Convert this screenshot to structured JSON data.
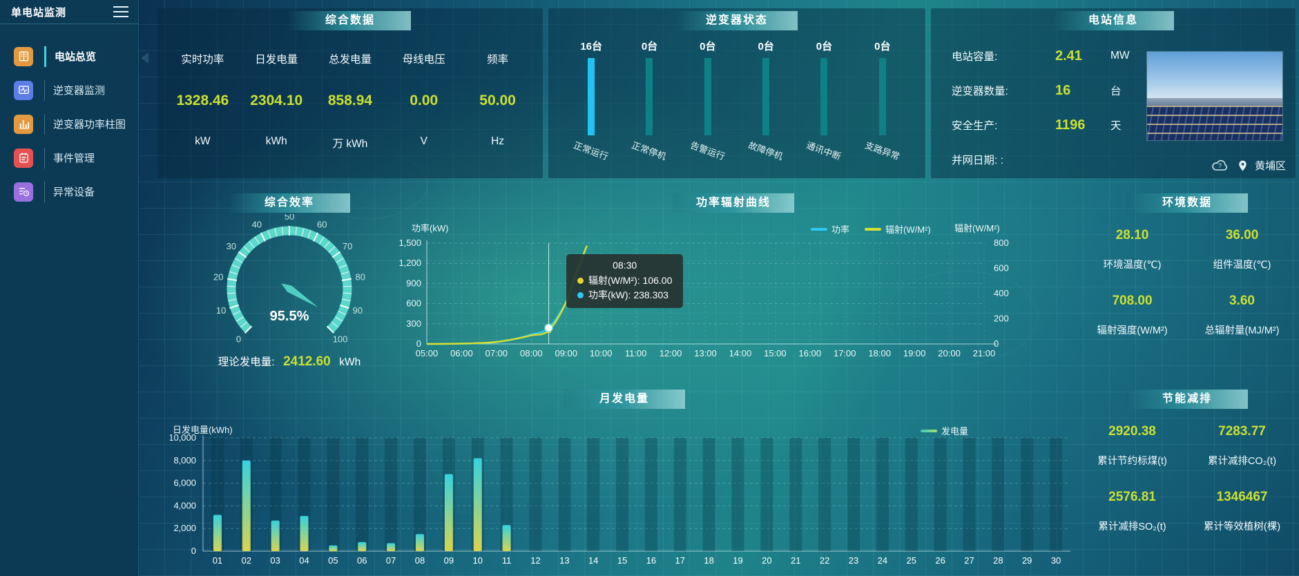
{
  "app": {
    "title": "单电站监测"
  },
  "theme": {
    "accent_value_color": "#cbe032",
    "banner_color": "#2f99a4",
    "gauge_color": "#5bd8ca"
  },
  "sidebar": {
    "items": [
      {
        "label": "电站总览",
        "icon": "station-overview-icon",
        "icon_color": "#e2993f",
        "active": true
      },
      {
        "label": "逆变器监测",
        "icon": "inverter-monitor-icon",
        "icon_color": "#5b7de4",
        "active": false
      },
      {
        "label": "逆变器功率柱图",
        "icon": "inverter-power-bars-icon",
        "icon_color": "#e2993f",
        "active": false
      },
      {
        "label": "事件管理",
        "icon": "event-management-icon",
        "icon_color": "#e65050",
        "active": false
      },
      {
        "label": "异常设备",
        "icon": "abnormal-device-icon",
        "icon_color": "#9a6fe0",
        "active": false
      }
    ]
  },
  "summary": {
    "title": "综合数据",
    "metrics": [
      {
        "label": "实时功率",
        "value": "1328.46",
        "unit": "kW"
      },
      {
        "label": "日发电量",
        "value": "2304.10",
        "unit": "kWh"
      },
      {
        "label": "总发电量",
        "value": "858.94",
        "unit": "万 kWh"
      },
      {
        "label": "母线电压",
        "value": "0.00",
        "unit": "V"
      },
      {
        "label": "频率",
        "value": "50.00",
        "unit": "Hz"
      }
    ]
  },
  "station_info": {
    "title": "电站信息",
    "rows": [
      {
        "label": "电站容量:",
        "value": "2.41",
        "unit": "MW"
      },
      {
        "label": "逆变器数量:",
        "value": "16",
        "unit": "台"
      },
      {
        "label": "安全生产:",
        "value": "1196",
        "unit": "天"
      },
      {
        "label": "并网日期: :",
        "value": "",
        "unit": ""
      }
    ],
    "location": "黄埔区"
  },
  "efficiency": {
    "title": "综合效率",
    "theory_label": "理论发电量:",
    "theory_value": "2412.60",
    "theory_unit": "kWh"
  },
  "environment": {
    "title": "环境数据",
    "metrics": [
      {
        "value": "28.10",
        "label": "环境温度(℃)"
      },
      {
        "value": "36.00",
        "label": "组件温度(℃)"
      },
      {
        "value": "708.00",
        "label": "辐射强度(W/M²)"
      },
      {
        "value": "3.60",
        "label": "总辐射量(MJ/M²)"
      }
    ]
  },
  "energy_saving": {
    "title": "节能减排",
    "metrics": [
      {
        "value": "2920.38",
        "label": "累计节约标煤(t)"
      },
      {
        "value": "7283.77",
        "label": "累计减排CO₂(t)"
      },
      {
        "value": "2576.81",
        "label": "累计减排SO₂(t)"
      },
      {
        "value": "1346467",
        "label": "累计等效植树(棵)"
      }
    ]
  },
  "chart_data": [
    {
      "id": "inverter_status",
      "type": "bar",
      "title": "逆变器状态",
      "categories": [
        "正常运行",
        "正常停机",
        "告警运行",
        "故障停机",
        "通讯中断",
        "支路异常"
      ],
      "values": [
        16,
        0,
        0,
        0,
        0,
        0
      ],
      "count_labels": [
        "16台",
        "0台",
        "0台",
        "0台",
        "0台",
        "0台"
      ],
      "bar_colors": [
        "#1fc4f4",
        "#0e8186",
        "#0e8186",
        "#0e8186",
        "#0e8186",
        "#0e8186"
      ]
    },
    {
      "id": "efficiency_gauge",
      "type": "gauge",
      "min": 0,
      "max": 100,
      "value": 95.5,
      "display": "95.5%",
      "color": "#5bd8ca",
      "tick_labels": [
        "0",
        "10",
        "20",
        "30",
        "40",
        "50",
        "60",
        "70",
        "80",
        "90",
        "100"
      ]
    },
    {
      "id": "power_radiation",
      "type": "line",
      "title": "功率辐射曲线",
      "x_range": [
        5,
        21
      ],
      "x_ticks": [
        "05:00",
        "06:00",
        "07:00",
        "08:00",
        "09:00",
        "10:00",
        "11:00",
        "12:00",
        "13:00",
        "14:00",
        "15:00",
        "16:00",
        "17:00",
        "18:00",
        "19:00",
        "20:00",
        "21:00"
      ],
      "left_axis": {
        "label": "功率(kW)",
        "min": 0,
        "max": 1500,
        "tick_labels": [
          "0",
          "300",
          "600",
          "900",
          "1,200",
          "1,500"
        ]
      },
      "right_axis": {
        "label": "辐射(W/M²)",
        "min": 0,
        "max": 800,
        "tick_labels": [
          "0",
          "200",
          "400",
          "600",
          "800"
        ]
      },
      "series": [
        {
          "name": "功率",
          "color": "#2fc8f5",
          "axis": "left",
          "points": [
            [
              5,
              0
            ],
            [
              5.5,
              1
            ],
            [
              6,
              4
            ],
            [
              6.5,
              10
            ],
            [
              7,
              28
            ],
            [
              7.5,
              70
            ],
            [
              8,
              140
            ],
            [
              8.5,
              238.303
            ],
            [
              9,
              620
            ],
            [
              9.25,
              950
            ],
            [
              9.55,
              1400
            ]
          ]
        },
        {
          "name": "辐射(W/M²)",
          "color": "#d6df31",
          "axis": "right",
          "points": [
            [
              5,
              0
            ],
            [
              5.5,
              1
            ],
            [
              6,
              3
            ],
            [
              6.5,
              7
            ],
            [
              7,
              16
            ],
            [
              7.5,
              38
            ],
            [
              8,
              68
            ],
            [
              8.5,
              106
            ],
            [
              9,
              330
            ],
            [
              9.25,
              540
            ],
            [
              9.6,
              780
            ]
          ]
        }
      ],
      "legend": [
        {
          "name": "功率",
          "color": "#2fc8f5"
        },
        {
          "name": "辐射(W/M²)",
          "color": "#d6df31"
        }
      ],
      "tooltip": {
        "title": "08:30",
        "x_value": 8.5,
        "marker_value": 238.303,
        "radiation_value": 106,
        "rows": [
          {
            "dot_color": "#e8d52c",
            "text": "辐射(W/M²): 106.00"
          },
          {
            "dot_color": "#2fc8f5",
            "text": "功率(kW): 238.303"
          }
        ]
      }
    },
    {
      "id": "monthly_generation",
      "type": "bar",
      "title": "月发电量",
      "ylabel": "日发电量(kWh)",
      "legend": "发电量",
      "categories": [
        "01",
        "02",
        "03",
        "04",
        "05",
        "06",
        "07",
        "08",
        "09",
        "10",
        "11",
        "12",
        "13",
        "14",
        "15",
        "16",
        "17",
        "18",
        "19",
        "20",
        "21",
        "22",
        "23",
        "24",
        "25",
        "26",
        "27",
        "28",
        "29",
        "30"
      ],
      "values": [
        3200,
        8000,
        2700,
        3100,
        500,
        800,
        700,
        1500,
        6800,
        8200,
        2300,
        0,
        0,
        0,
        0,
        0,
        0,
        0,
        0,
        0,
        0,
        0,
        0,
        0,
        0,
        0,
        0,
        0,
        0,
        0
      ],
      "ylim": [
        0,
        10000
      ],
      "ytick_labels": [
        "0",
        "2,000",
        "4,000",
        "6,000",
        "8,000",
        "10,000"
      ],
      "bar_gradient": [
        "#d9d44e",
        "#35d2df"
      ]
    }
  ]
}
